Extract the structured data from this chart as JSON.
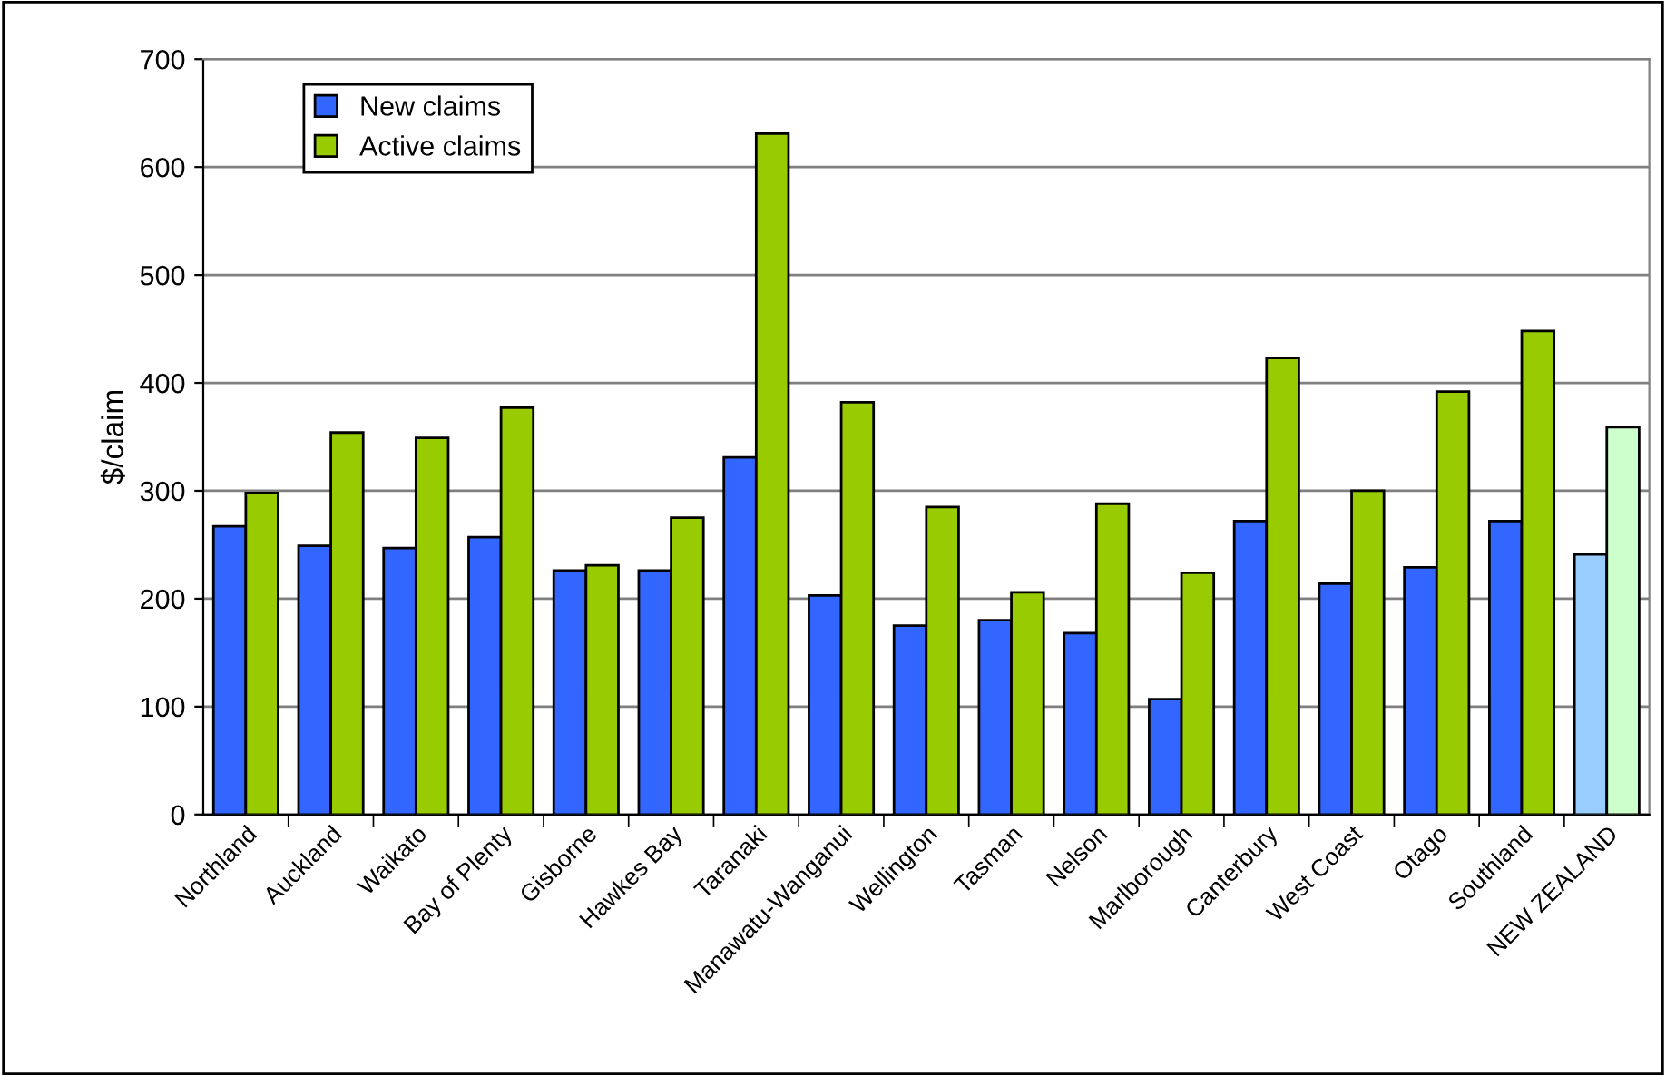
{
  "chart_data": {
    "type": "bar",
    "ylabel": "$/claim",
    "categories": [
      "Northland",
      "Auckland",
      "Waikato",
      "Bay of Plenty",
      "Gisborne",
      "Hawkes Bay",
      "Taranaki",
      "Manawatu-Wanganui",
      "Wellington",
      "Tasman",
      "Nelson",
      "Marlborough",
      "Canterbury",
      "West Coast",
      "Otago",
      "Southland",
      "NEW ZEALAND"
    ],
    "series": [
      {
        "name": "New claims",
        "color": "#3366ff",
        "colors": [
          "#3366ff",
          "#3366ff",
          "#3366ff",
          "#3366ff",
          "#3366ff",
          "#3366ff",
          "#3366ff",
          "#3366ff",
          "#3366ff",
          "#3366ff",
          "#3366ff",
          "#3366ff",
          "#3366ff",
          "#3366ff",
          "#3366ff",
          "#3366ff",
          "#99ccff"
        ],
        "values": [
          267,
          249,
          247,
          257,
          226,
          226,
          331,
          203,
          175,
          180,
          168,
          107,
          272,
          214,
          229,
          272,
          241
        ]
      },
      {
        "name": "Active claims",
        "color": "#99cc00",
        "colors": [
          "#99cc00",
          "#99cc00",
          "#99cc00",
          "#99cc00",
          "#99cc00",
          "#99cc00",
          "#99cc00",
          "#99cc00",
          "#99cc00",
          "#99cc00",
          "#99cc00",
          "#99cc00",
          "#99cc00",
          "#99cc00",
          "#99cc00",
          "#99cc00",
          "#ccffcc"
        ],
        "values": [
          298,
          354,
          349,
          377,
          231,
          275,
          631,
          382,
          285,
          206,
          288,
          224,
          423,
          300,
          392,
          448,
          359
        ]
      }
    ],
    "ylim": [
      0,
      700
    ],
    "yticks": [
      0,
      100,
      200,
      300,
      400,
      500,
      600,
      700
    ],
    "grid": "y",
    "legend": "top left"
  }
}
